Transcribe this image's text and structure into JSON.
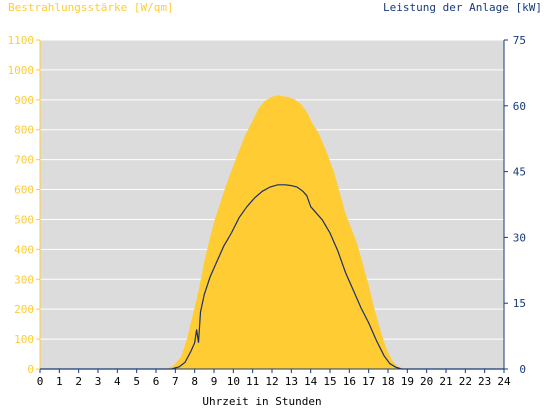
{
  "chart_data": {
    "type": "area",
    "title_left": "Bestrahlungsstärke [W/qm]",
    "title_right": "Leistung der Anlage [kW]",
    "xlabel": "Uhrzeit in Stunden",
    "x_ticks": [
      "0",
      "1",
      "2",
      "3",
      "4",
      "5",
      "6",
      "7",
      "8",
      "9",
      "10",
      "11",
      "12",
      "13",
      "14",
      "15",
      "16",
      "17",
      "18",
      "19",
      "20",
      "21",
      "22",
      "23",
      "24"
    ],
    "xlim": [
      0,
      24
    ],
    "y_left_ticks": [
      "0",
      "100",
      "200",
      "300",
      "400",
      "500",
      "600",
      "700",
      "800",
      "900",
      "1000",
      "1100"
    ],
    "ylim_left": [
      0,
      1100
    ],
    "y_right_ticks": [
      "0",
      "15",
      "30",
      "45",
      "60",
      "75"
    ],
    "ylim_right": [
      0,
      75
    ],
    "colors": {
      "irradiance": "#ffcc33",
      "power": "#1a2f6b",
      "left_axis_text": "#ffcc33",
      "right_axis_text": "#1a3a7a",
      "plot_bg": "#dcdcdc"
    },
    "series": [
      {
        "axis": "left",
        "x": [
          0,
          6.5,
          6.9,
          7.3,
          7.6,
          7.9,
          8.2,
          8.5,
          8.8,
          9.0,
          9.3,
          9.6,
          10.0,
          10.3,
          10.6,
          11.0,
          11.3,
          11.6,
          12.0,
          12.3,
          12.6,
          12.9,
          13.2,
          13.5,
          13.8,
          14.1,
          14.4,
          14.8,
          15.2,
          15.5,
          15.8,
          16.1,
          16.4,
          16.7,
          17.0,
          17.3,
          17.6,
          17.9,
          18.2,
          18.5,
          18.8,
          19.0,
          24
        ],
        "values": [
          0,
          0,
          10,
          40,
          100,
          180,
          260,
          360,
          440,
          490,
          550,
          610,
          680,
          730,
          780,
          830,
          870,
          895,
          910,
          915,
          912,
          908,
          900,
          885,
          860,
          820,
          790,
          730,
          660,
          590,
          520,
          470,
          420,
          350,
          280,
          200,
          130,
          70,
          30,
          8,
          2,
          0,
          0
        ]
      },
      {
        "axis": "right",
        "x": [
          0,
          6.8,
          7.2,
          7.5,
          7.8,
          8.0,
          8.1,
          8.2,
          8.3,
          8.5,
          8.8,
          9.1,
          9.5,
          9.9,
          10.3,
          10.7,
          11.1,
          11.5,
          11.9,
          12.3,
          12.7,
          13.0,
          13.3,
          13.6,
          13.8,
          14.0,
          14.3,
          14.6,
          15.0,
          15.4,
          15.8,
          16.2,
          16.6,
          17.0,
          17.4,
          17.8,
          18.1,
          18.4,
          18.7,
          24
        ],
        "values": [
          0,
          0,
          0.5,
          1.5,
          4,
          6,
          9,
          6,
          13,
          17,
          21,
          24,
          28,
          31,
          34.5,
          37,
          39,
          40.5,
          41.5,
          42,
          42,
          41.8,
          41.5,
          40.5,
          39.5,
          37,
          35.5,
          34,
          31,
          27,
          22,
          18,
          14,
          10.5,
          6.5,
          3,
          1.2,
          0.4,
          0,
          0
        ]
      }
    ]
  }
}
